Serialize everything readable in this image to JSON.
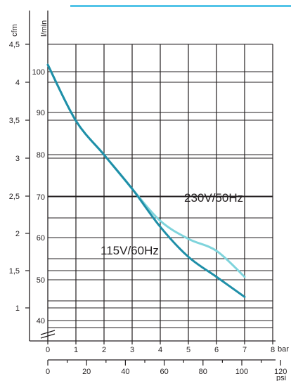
{
  "chart_data": {
    "type": "line",
    "title": "",
    "xlabel": "",
    "ylabel": "",
    "x_units": {
      "bar": "bar",
      "psi": "psi"
    },
    "y_units": {
      "cfm": "cfm",
      "lmin": "l/min"
    },
    "x_bar_ticks": [
      "0",
      "1",
      "2",
      "3",
      "4",
      "5",
      "6",
      "7",
      "8"
    ],
    "x_psi_ticks": [
      "0",
      "20",
      "40",
      "60",
      "80",
      "100",
      "120"
    ],
    "y_cfm_ticks": [
      "1",
      "1,5",
      "2",
      "2,5",
      "3",
      "3,5",
      "4",
      "4,5"
    ],
    "y_lmin_ticks": [
      "40",
      "50",
      "60",
      "70",
      "80",
      "90",
      "100"
    ],
    "xlim_bar": [
      0,
      8
    ],
    "ylim_lmin": [
      35,
      110
    ],
    "grid": true,
    "accent_color": "#53c4e8",
    "series": [
      {
        "name": "115V/60Hz",
        "color": "#1f8fa8",
        "x": [
          0,
          1,
          2,
          3,
          4,
          5,
          6,
          7
        ],
        "values": [
          104,
          90,
          81.5,
          73,
          63.5,
          56,
          51,
          46
        ]
      },
      {
        "name": "230V/50Hz",
        "color": "#7fd4dc",
        "x": [
          0,
          1,
          2,
          3,
          4,
          5,
          6,
          7
        ],
        "values": [
          104,
          90,
          81.5,
          73,
          65,
          60.5,
          57.5,
          51
        ]
      }
    ]
  }
}
